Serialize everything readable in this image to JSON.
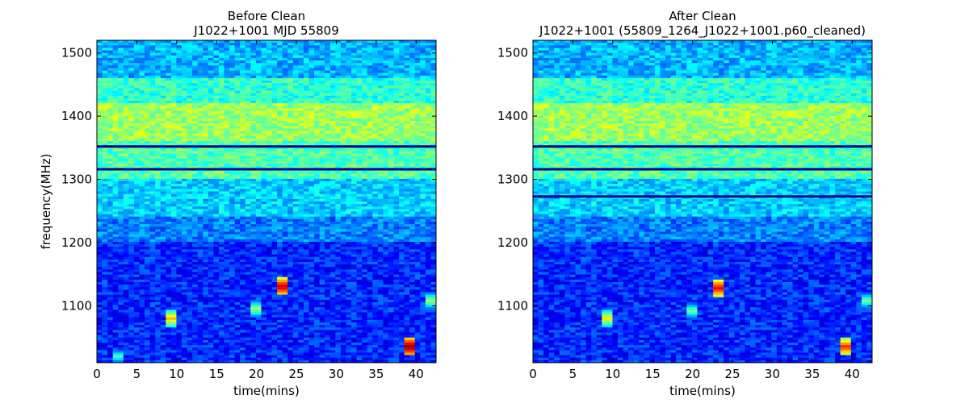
{
  "chart_data": [
    {
      "type": "heatmap",
      "title": "Before Clean",
      "subtitle": "J1022+1001 MJD 55809",
      "xlabel": "time(mins)",
      "ylabel": "frequency(MHz)",
      "xlim": [
        0,
        42.5
      ],
      "ylim": [
        1010,
        1520
      ],
      "xticks": [
        0,
        5,
        10,
        15,
        20,
        25,
        30,
        35,
        40
      ],
      "yticks": [
        1100,
        1200,
        1300,
        1400,
        1500
      ],
      "colormap": "jet",
      "grid": false,
      "rfi_lines_mhz": [
        1352,
        1316
      ],
      "hot_spots": [
        {
          "time": 9.5,
          "freq": 1080,
          "intensity": 0.7
        },
        {
          "time": 20.0,
          "freq": 1095,
          "intensity": 0.55
        },
        {
          "time": 23.0,
          "freq": 1130,
          "intensity": 0.95
        },
        {
          "time": 39.0,
          "freq": 1035,
          "intensity": 1.0
        },
        {
          "time": 42.0,
          "freq": 1108,
          "intensity": 0.55
        },
        {
          "time": 2.5,
          "freq": 1020,
          "intensity": 0.45
        }
      ]
    },
    {
      "type": "heatmap",
      "title": "After Clean",
      "subtitle": "J1022+1001  (55809_1264_J1022+1001.p60_cleaned)",
      "xlabel": "time(mins)",
      "ylabel": "",
      "xlim": [
        0,
        42.5
      ],
      "ylim": [
        1010,
        1520
      ],
      "xticks": [
        0,
        5,
        10,
        15,
        20,
        25,
        30,
        35,
        40
      ],
      "yticks": [
        1100,
        1200,
        1300,
        1400,
        1500
      ],
      "colormap": "jet",
      "grid": false,
      "rfi_lines_mhz": [
        1352,
        1316,
        1273
      ],
      "hot_spots": [
        {
          "time": 9.5,
          "freq": 1080,
          "intensity": 0.65
        },
        {
          "time": 20.0,
          "freq": 1092,
          "intensity": 0.5
        },
        {
          "time": 23.0,
          "freq": 1128,
          "intensity": 0.9
        },
        {
          "time": 39.0,
          "freq": 1035,
          "intensity": 0.85
        },
        {
          "time": 42.0,
          "freq": 1108,
          "intensity": 0.5
        }
      ]
    }
  ]
}
